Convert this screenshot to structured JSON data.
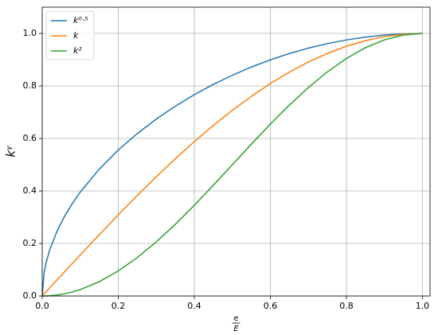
{
  "chart_data": {
    "type": "line",
    "xlabel": {
      "numerator": "e",
      "denominator": "E"
    },
    "ylabel": "kᵞ",
    "x": [
      0,
      0.005,
      0.01,
      0.02,
      0.04,
      0.06,
      0.08,
      0.1,
      0.15,
      0.2,
      0.25,
      0.3,
      0.35,
      0.4,
      0.45,
      0.5,
      0.55,
      0.6,
      0.65,
      0.7,
      0.75,
      0.8,
      0.85,
      0.9,
      0.95,
      1
    ],
    "series": [
      {
        "name": "k⁰·⁵",
        "color": "#1f77b4",
        "values": [
          0,
          0.0886,
          0.1253,
          0.1772,
          0.2506,
          0.3068,
          0.354,
          0.3955,
          0.4832,
          0.5559,
          0.6186,
          0.6738,
          0.7228,
          0.7667,
          0.8059,
          0.8409,
          0.872,
          0.8995,
          0.9234,
          0.9439,
          0.9612,
          0.9752,
          0.9861,
          0.9938,
          0.9985,
          1
        ]
      },
      {
        "name": "k",
        "color": "#ff7f0e",
        "values": [
          0,
          0.0079,
          0.0157,
          0.0314,
          0.0628,
          0.0941,
          0.1253,
          0.1564,
          0.2334,
          0.309,
          0.3827,
          0.454,
          0.5225,
          0.5878,
          0.6494,
          0.7071,
          0.7604,
          0.809,
          0.8526,
          0.891,
          0.9239,
          0.9511,
          0.9724,
          0.9877,
          0.9969,
          1
        ]
      },
      {
        "name": "k²",
        "color": "#2ca02c",
        "values": [
          0,
          0.0001,
          0.0002,
          0.001,
          0.0039,
          0.0089,
          0.0157,
          0.0245,
          0.0545,
          0.0955,
          0.1464,
          0.2061,
          0.273,
          0.3455,
          0.4218,
          0.5,
          0.5782,
          0.6545,
          0.727,
          0.7939,
          0.8536,
          0.9045,
          0.9455,
          0.9755,
          0.9938,
          1
        ]
      }
    ],
    "xlim": [
      0,
      1.02
    ],
    "ylim": [
      0,
      1.1
    ],
    "xticks": [
      {
        "value": 0,
        "label": "0.0"
      },
      {
        "value": 0.2,
        "label": "0.2"
      },
      {
        "value": 0.4,
        "label": "0.4"
      },
      {
        "value": 0.6,
        "label": "0.6"
      },
      {
        "value": 0.8,
        "label": "0.8"
      },
      {
        "value": 1,
        "label": "1.0"
      }
    ],
    "yticks": [
      {
        "value": 0,
        "label": "0.0"
      },
      {
        "value": 0.2,
        "label": "0.2"
      },
      {
        "value": 0.4,
        "label": "0.4"
      },
      {
        "value": 0.6,
        "label": "0.6"
      },
      {
        "value": 0.8,
        "label": "0.8"
      },
      {
        "value": 1,
        "label": "1.0"
      }
    ],
    "grid": true,
    "legend": "upper-left"
  }
}
